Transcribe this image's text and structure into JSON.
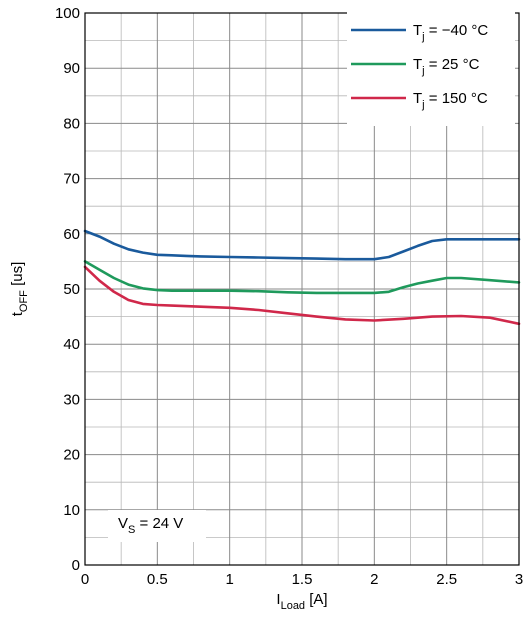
{
  "chart_data": {
    "type": "line",
    "xlabel": {
      "main": "I",
      "sub": "Load",
      "rest": " [A]"
    },
    "ylabel": {
      "main": "t",
      "sub": "OFF",
      "rest": " [us]"
    },
    "xlim": [
      0,
      3
    ],
    "ylim": [
      0,
      100
    ],
    "x_ticks": [
      0,
      0.5,
      1,
      1.5,
      2,
      2.5,
      3
    ],
    "x_tick_labels": [
      "0",
      "0.5",
      "1",
      "1.5",
      "2",
      "2.5",
      "3"
    ],
    "x_minor_step": 0.25,
    "y_ticks": [
      0,
      10,
      20,
      30,
      40,
      50,
      60,
      70,
      80,
      90,
      100
    ],
    "y_tick_labels": [
      "0",
      "10",
      "20",
      "30",
      "40",
      "50",
      "60",
      "70",
      "80",
      "90",
      "100"
    ],
    "y_minor_step": 5,
    "grid": true,
    "legend_position": "top-right",
    "annotation": {
      "main": "V",
      "sub": "S",
      "rest": " = 24 V"
    },
    "series": [
      {
        "name": "T_j = −40 °C",
        "name_main": "T",
        "name_sub": "j",
        "name_rest": " = −40 °C",
        "color": "#1a5a9c",
        "x": [
          0,
          0.1,
          0.2,
          0.3,
          0.4,
          0.5,
          0.6,
          0.7,
          0.8,
          1.0,
          1.2,
          1.4,
          1.6,
          1.8,
          2.0,
          2.1,
          2.2,
          2.3,
          2.4,
          2.5,
          2.6,
          2.8,
          3.0
        ],
        "values": [
          60.5,
          59.5,
          58.2,
          57.2,
          56.6,
          56.2,
          56.1,
          56.0,
          55.9,
          55.8,
          55.7,
          55.6,
          55.5,
          55.4,
          55.4,
          55.8,
          56.8,
          57.8,
          58.7,
          59.0,
          59.0,
          59.0,
          59.0
        ]
      },
      {
        "name": "T_j = 25 °C",
        "name_main": "T",
        "name_sub": "j",
        "name_rest": " = 25 °C",
        "color": "#1f9a5c",
        "x": [
          0,
          0.1,
          0.2,
          0.3,
          0.4,
          0.5,
          0.6,
          0.8,
          1.0,
          1.2,
          1.4,
          1.6,
          1.8,
          2.0,
          2.1,
          2.2,
          2.3,
          2.4,
          2.5,
          2.6,
          2.8,
          3.0
        ],
        "values": [
          55.0,
          53.5,
          52.0,
          50.8,
          50.1,
          49.8,
          49.7,
          49.7,
          49.7,
          49.6,
          49.4,
          49.3,
          49.3,
          49.3,
          49.5,
          50.3,
          51.0,
          51.5,
          52.0,
          52.0,
          51.6,
          51.2
        ]
      },
      {
        "name": "T_j = 150 °C",
        "name_main": "T",
        "name_sub": "j",
        "name_rest": " = 150 °C",
        "color": "#d0284a",
        "x": [
          0,
          0.1,
          0.2,
          0.3,
          0.4,
          0.5,
          0.6,
          0.8,
          1.0,
          1.2,
          1.4,
          1.6,
          1.8,
          2.0,
          2.2,
          2.4,
          2.6,
          2.8,
          3.0
        ],
        "values": [
          54.0,
          51.5,
          49.5,
          48.0,
          47.3,
          47.1,
          47.0,
          46.8,
          46.6,
          46.2,
          45.6,
          45.0,
          44.5,
          44.3,
          44.6,
          45.0,
          45.1,
          44.8,
          43.7
        ]
      }
    ]
  }
}
